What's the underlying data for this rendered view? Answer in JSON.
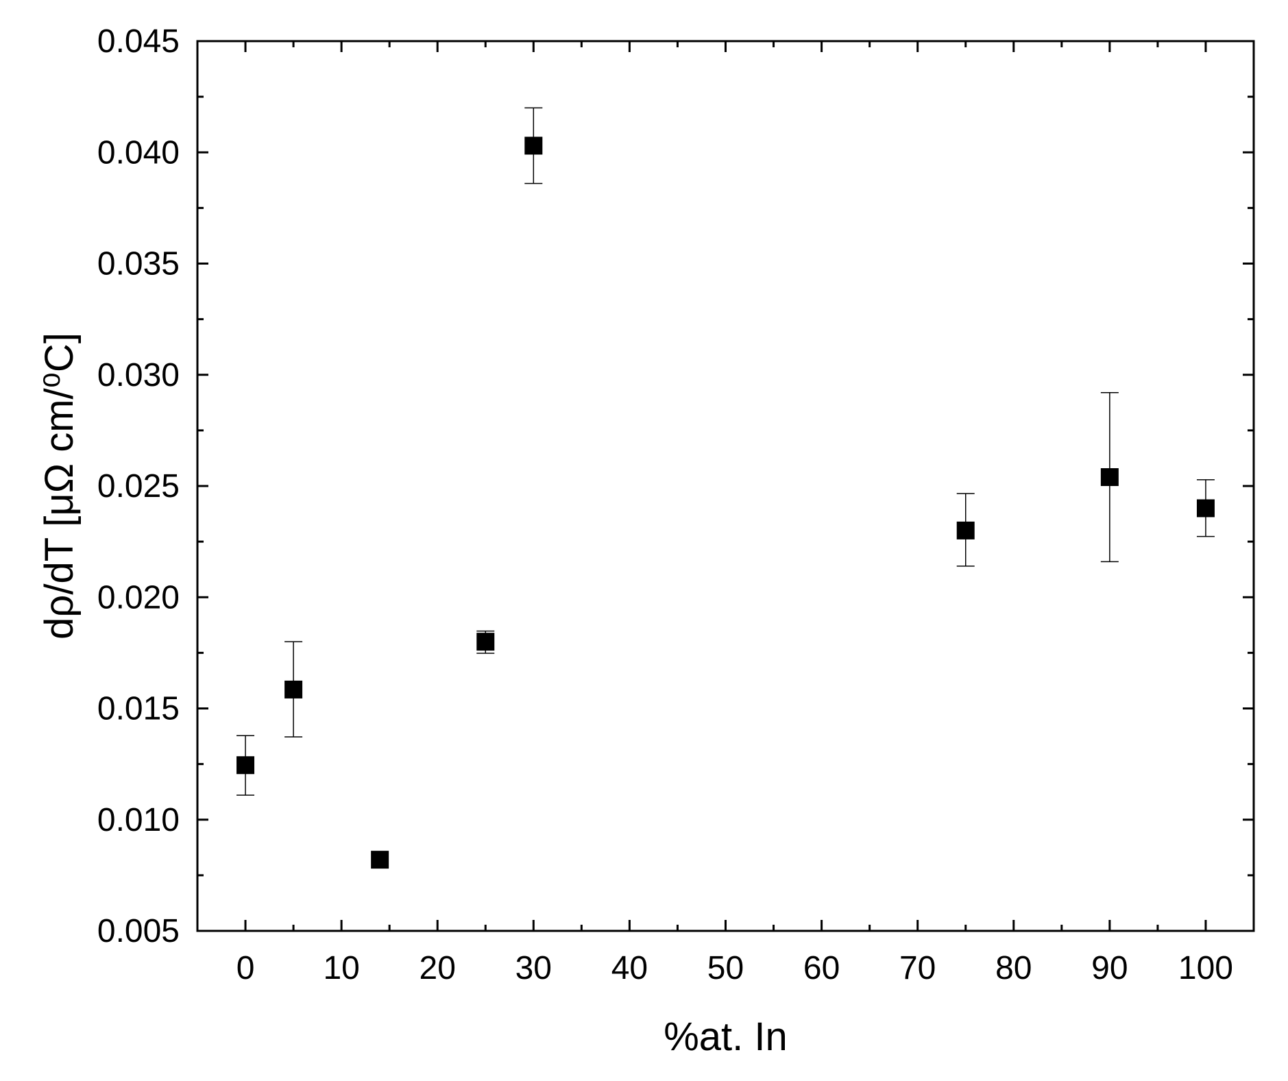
{
  "chart_data": {
    "type": "scatter",
    "title": "",
    "xlabel": "%at. In",
    "ylabel": "dρ/dT [μΩ cm/⁰C]",
    "xlim": [
      -5,
      105
    ],
    "ylim": [
      0.005,
      0.045
    ],
    "x_ticks": [
      0,
      10,
      20,
      30,
      40,
      50,
      60,
      70,
      80,
      90,
      100
    ],
    "x_tick_labels": [
      "0",
      "10",
      "20",
      "30",
      "40",
      "50",
      "60",
      "70",
      "80",
      "90",
      "100"
    ],
    "y_ticks": [
      0.005,
      0.01,
      0.015,
      0.02,
      0.025,
      0.03,
      0.035,
      0.04,
      0.045
    ],
    "y_tick_labels": [
      "0.005",
      "0.010",
      "0.015",
      "0.020",
      "0.025",
      "0.030",
      "0.035",
      "0.040",
      "0.045"
    ],
    "grid": false,
    "legend": "none",
    "marker": "square",
    "marker_color": "#000000",
    "series": [
      {
        "x": [
          0,
          5,
          14,
          25,
          30,
          75,
          90,
          100
        ],
        "y": [
          0.01245,
          0.01585,
          0.0082,
          0.018,
          0.0403,
          0.023,
          0.0254,
          0.024
        ],
        "y_err_upper": [
          0.01378,
          0.018,
          0.0082,
          0.01848,
          0.042,
          0.02466,
          0.0292,
          0.02528
        ],
        "y_err_lower": [
          0.0111,
          0.01372,
          0.0082,
          0.01748,
          0.0386,
          0.0214,
          0.0216,
          0.02273
        ]
      }
    ]
  }
}
